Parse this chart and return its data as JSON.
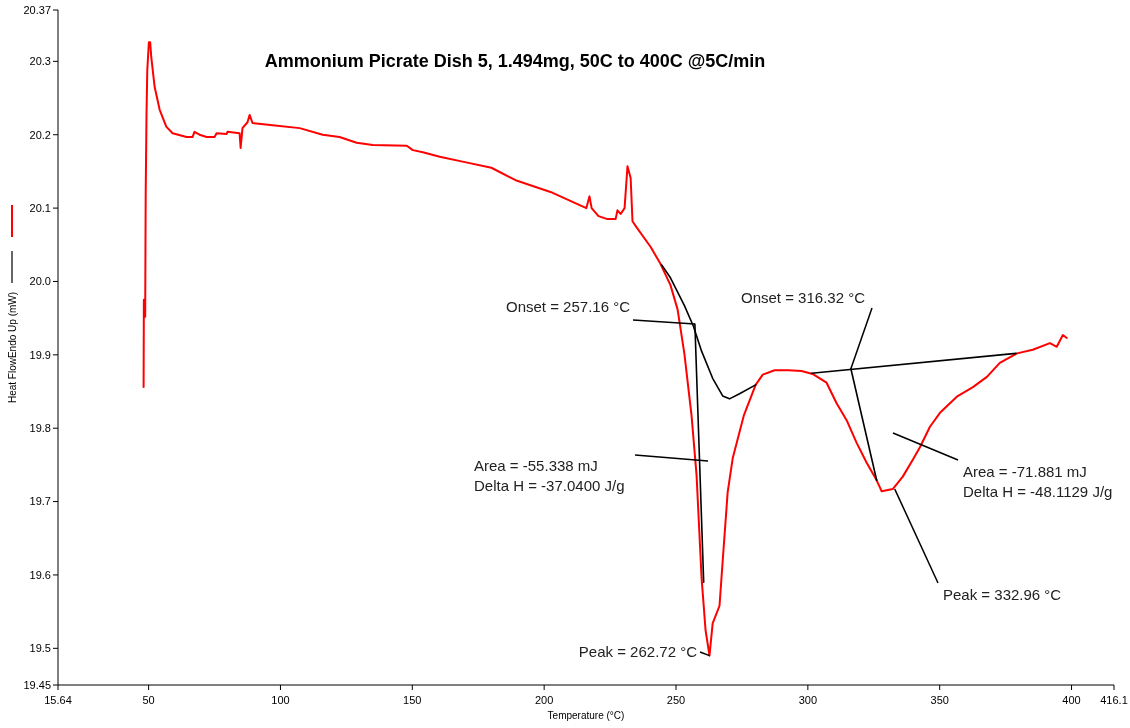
{
  "chart_data": {
    "type": "line",
    "title": "Ammonium Picrate Dish 5, 1.494mg, 50C to 400C @5C/min",
    "xlabel": "Temperature (°C)",
    "ylabel": "Heat FlowEndo Up (mW)",
    "xlim": [
      15.64,
      416.1
    ],
    "xticks": [
      15.64,
      50,
      100,
      150,
      200,
      250,
      300,
      350,
      400,
      416.1
    ],
    "ylim": [
      19.45,
      20.37
    ],
    "yticks": [
      19.45,
      19.5,
      19.6,
      19.7,
      19.8,
      19.9,
      {
        "value": 20,
        "label": "20.0"
      },
      20.1,
      20.2,
      20.3,
      20.37
    ],
    "grid": false,
    "line_style": "solid",
    "marker": "none",
    "series": [
      {
        "color": "#ff0000",
        "x": [
          48.1,
          48.2,
          48.7,
          48.9,
          49.2,
          49.5,
          50.1,
          50.6,
          51.0,
          52.3,
          54.2,
          56.7,
          59.1,
          64.4,
          66.7,
          67.4,
          69.3,
          72.0,
          75.0,
          75.8,
          79.6,
          79.9,
          84.5,
          84.9,
          85.6,
          87.5,
          88.3,
          89.4,
          97.0,
          107.3,
          116.0,
          122.4,
          128.9,
          135.0,
          147.9,
          150.2,
          154.0,
          160.4,
          169.5,
          180.0,
          189.2,
          202.4,
          216.0,
          217.2,
          218.0,
          220.6,
          224.0,
          227.1,
          227.8,
          229.0,
          230.5,
          231.6,
          232.8,
          233.5,
          235.0,
          240.4,
          244.1,
          247.9,
          250.6,
          253.2,
          255.9,
          257.8,
          259.7,
          261.2,
          262.7,
          263.9,
          266.5,
          267.7,
          269.6,
          271.5,
          275.7,
          280.2,
          282.9,
          287.4,
          292.7,
          297.6,
          301.8,
          307.1,
          310.9,
          314.7,
          318.5,
          322.3,
          326.1,
          328.0,
          332.2,
          336.0,
          339.8,
          342.5,
          346.3,
          350.1,
          356.5,
          362.6,
          367.9,
          372.8,
          379.3,
          385.3,
          391.8,
          394.4,
          396.7,
          398.2
        ],
        "values": [
          19.856,
          19.975,
          19.952,
          20.121,
          20.227,
          20.288,
          20.326,
          20.326,
          20.306,
          20.265,
          20.234,
          20.211,
          20.202,
          20.197,
          20.197,
          20.204,
          20.2,
          20.197,
          20.197,
          20.202,
          20.201,
          20.204,
          20.202,
          20.182,
          20.209,
          20.217,
          20.227,
          20.216,
          20.213,
          20.209,
          20.2,
          20.197,
          20.189,
          20.186,
          20.185,
          20.179,
          20.176,
          20.17,
          20.163,
          20.155,
          20.138,
          20.122,
          20.1,
          20.116,
          20.1,
          20.089,
          20.085,
          20.085,
          20.097,
          20.092,
          20.1,
          20.157,
          20.141,
          20.082,
          20.074,
          20.047,
          20.024,
          19.995,
          19.962,
          19.901,
          19.817,
          19.736,
          19.596,
          19.525,
          19.49,
          19.534,
          19.558,
          19.619,
          19.713,
          19.759,
          19.817,
          19.859,
          19.873,
          19.879,
          19.879,
          19.878,
          19.874,
          19.862,
          19.834,
          19.811,
          19.78,
          19.753,
          19.729,
          19.714,
          19.717,
          19.734,
          19.757,
          19.774,
          19.802,
          19.821,
          19.843,
          19.856,
          19.87,
          19.889,
          19.902,
          19.907,
          19.916,
          19.911,
          19.927,
          19.923
        ]
      },
      {
        "color": "#000000",
        "x": [
          244.5,
          247.9,
          253.2,
          256.6,
          259.7,
          263.9,
          267.7,
          270.3,
          274.1,
          280.2,
          290,
          301.4,
          378.9
        ],
        "values": [
          20.023,
          20.005,
          19.967,
          19.939,
          19.905,
          19.868,
          19.844,
          19.84,
          19.847,
          19.859,
          null,
          19.875,
          19.902
        ]
      },
      {
        "color": "#000000",
        "x": [
          257.16,
          260.5,
          290,
          316.32,
          326.1
        ],
        "values": [
          19.942,
          19.59,
          null,
          19.881,
          19.729
        ]
      }
    ],
    "annotations": [
      {
        "text": "Onset = 257.16 °C",
        "x": 257.16,
        "y": 19.942
      },
      {
        "text": "Onset = 316.32 °C",
        "x": 316.32,
        "y": 19.881
      },
      "Area = -55.338 mJ",
      "Delta H = -37.0400 J/g",
      "Area = -71.881 mJ",
      "Delta H = -48.1129 J/g",
      {
        "text": "Peak = 262.72 °C",
        "x": 262.72,
        "y": 19.49
      },
      {
        "text": "Peak = 332.96 °C",
        "x": 332.96,
        "y": 19.717
      }
    ]
  }
}
